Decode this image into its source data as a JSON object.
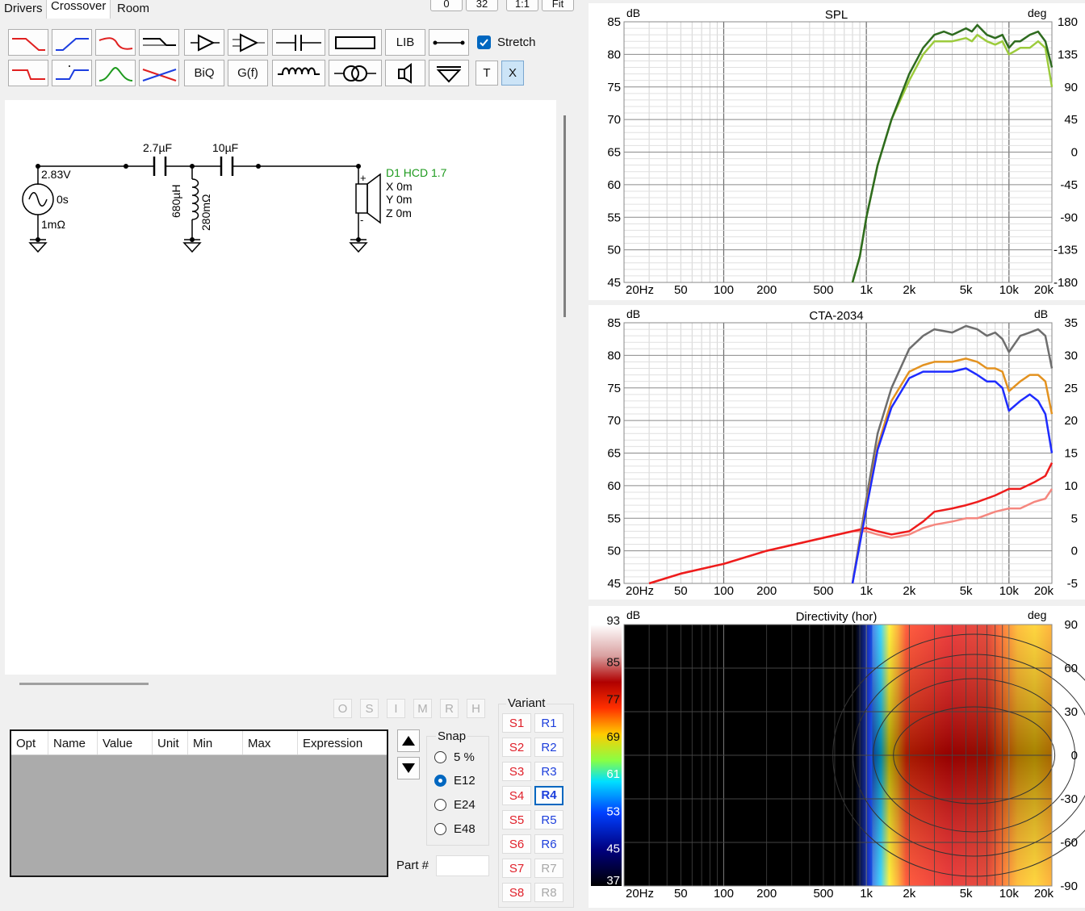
{
  "tabs": [
    {
      "label": "Drivers",
      "active": false
    },
    {
      "label": "Crossover",
      "active": true
    },
    {
      "label": "Room",
      "active": false
    }
  ],
  "top_buttons": [
    "0",
    "32",
    "1:1",
    "Fit"
  ],
  "toolbar": {
    "lib_label": "LIB",
    "biq_label": "BiQ",
    "gf_label": "G(f)",
    "t_label": "T",
    "x_label": "X",
    "stretch_label": "Stretch",
    "stretch_checked": true
  },
  "schematic": {
    "source_voltage": "2.83V",
    "source_delay": "0s",
    "source_resistance": "1mΩ",
    "cap1": "2.7µF",
    "cap2": "10µF",
    "inductor_value": "680µH",
    "inductor_resistance": "280mΩ",
    "driver_name": "D1 HCD 1.7",
    "driver_x": "X 0m",
    "driver_y": "Y 0m",
    "driver_z": "Z 0m",
    "plus": "+",
    "minus": "-"
  },
  "opt_buttons": [
    "O",
    "S",
    "I",
    "M",
    "R",
    "H"
  ],
  "param_table": {
    "columns": [
      "Opt",
      "Name",
      "Value",
      "Unit",
      "Min",
      "Max",
      "Expression"
    ]
  },
  "snap": {
    "title": "Snap",
    "options": [
      {
        "label": "5 %",
        "selected": false
      },
      {
        "label": "E12",
        "selected": true
      },
      {
        "label": "E24",
        "selected": false
      },
      {
        "label": "E48",
        "selected": false
      }
    ]
  },
  "part_label": "Part #",
  "variant": {
    "title": "Variant",
    "s_buttons": [
      "S1",
      "S2",
      "S3",
      "S4",
      "S5",
      "S6",
      "S7",
      "S8"
    ],
    "r_buttons": [
      "R1",
      "R2",
      "R3",
      "R4",
      "R5",
      "R6",
      "R7",
      "R8"
    ],
    "current_r": "R4",
    "disabled_r": [
      "R7",
      "R8"
    ]
  },
  "charts": {
    "colors": {
      "spl_dark": "#2e6b1f",
      "spl_light": "#9ccb3c",
      "cta_on_axis": "#6e6e6e",
      "cta_listening": "#e39220",
      "cta_early": "#1e2cff",
      "cta_power": "#ee1c1c",
      "cta_power_light": "#f5877f"
    },
    "x_ticks": [
      "20Hz",
      "50",
      "100",
      "200",
      "500",
      "1k",
      "2k",
      "5k",
      "10k",
      "20k"
    ],
    "spl": {
      "title": "SPL",
      "left_unit": "dB",
      "right_unit": "deg",
      "y_ticks": [
        "85",
        "80",
        "75",
        "70",
        "65",
        "60",
        "55",
        "50",
        "45"
      ],
      "right_ticks": [
        "180",
        "135",
        "90",
        "45",
        "0",
        "-45",
        "-90",
        "-135",
        "-180"
      ]
    },
    "cta": {
      "title": "CTA-2034",
      "left_unit": "dB",
      "right_unit": "dB",
      "y_ticks": [
        "85",
        "80",
        "75",
        "70",
        "65",
        "60",
        "55",
        "50",
        "45"
      ],
      "right_ticks": [
        "35",
        "30",
        "25",
        "20",
        "15",
        "10",
        "5",
        "0",
        "-5"
      ]
    },
    "directivity": {
      "title": "Directivity (hor)",
      "left_unit": "dB",
      "right_unit": "deg",
      "scale_ticks": [
        "93",
        "85",
        "77",
        "69",
        "61",
        "53",
        "45",
        "37"
      ],
      "right_ticks": [
        "90",
        "60",
        "30",
        "0",
        "-30",
        "-60",
        "-90"
      ]
    }
  },
  "chart_data": [
    {
      "type": "line",
      "title": "SPL",
      "xscale": "log",
      "xlim": [
        20,
        20000
      ],
      "ylim": [
        45,
        85
      ],
      "series": [
        {
          "x": [
            800,
            900,
            1000,
            1200,
            1500,
            2000,
            2500,
            3000,
            3500,
            4000,
            5000,
            5500,
            6000,
            7000,
            8000,
            9000,
            10000,
            11000,
            12000,
            14000,
            16000,
            18000,
            20000
          ],
          "values": [
            45,
            49,
            55,
            63,
            70,
            77,
            81,
            83,
            83.5,
            83,
            84,
            83.5,
            84.5,
            83,
            82.5,
            83,
            81,
            82,
            82,
            83,
            83.5,
            82,
            78
          ]
        },
        {
          "x": [
            800,
            900,
            1000,
            1200,
            1500,
            2000,
            2500,
            3000,
            3500,
            4000,
            5000,
            5500,
            6000,
            7000,
            8000,
            9000,
            10000,
            11000,
            12000,
            14000,
            16000,
            18000,
            20000
          ],
          "values": [
            45,
            49,
            55,
            63,
            70,
            76,
            80,
            82,
            82,
            82,
            82.5,
            82,
            83,
            82,
            81.5,
            82,
            80,
            80.5,
            81,
            81,
            82,
            81,
            75
          ]
        }
      ]
    },
    {
      "type": "line",
      "title": "CTA-2034",
      "xscale": "log",
      "xlim": [
        20,
        20000
      ],
      "ylim": [
        45,
        85
      ],
      "series": [
        {
          "x": [
            800,
            1000,
            1200,
            1500,
            2000,
            2500,
            3000,
            4000,
            5000,
            6000,
            7000,
            8000,
            9000,
            10000,
            12000,
            14000,
            16000,
            18000,
            20000
          ],
          "values": [
            45,
            58,
            68,
            75,
            81,
            83,
            84,
            83.5,
            84.5,
            84,
            83,
            83.5,
            82.5,
            80.5,
            83,
            83.5,
            84,
            83,
            78
          ]
        },
        {
          "x": [
            800,
            1000,
            1200,
            1500,
            2000,
            2500,
            3000,
            4000,
            5000,
            6000,
            7000,
            8000,
            9000,
            10000,
            12000,
            14000,
            16000,
            18000,
            20000
          ],
          "values": [
            45,
            57,
            66,
            73,
            77.5,
            78.5,
            79,
            79,
            79.5,
            79,
            78,
            78,
            77.5,
            74.5,
            76,
            77,
            77,
            76,
            71
          ]
        },
        {
          "x": [
            800,
            1000,
            1200,
            1500,
            2000,
            2500,
            3000,
            4000,
            5000,
            6000,
            7000,
            8000,
            9000,
            10000,
            12000,
            14000,
            16000,
            18000,
            20000
          ],
          "values": [
            45,
            56.5,
            65.5,
            72,
            76.5,
            77.5,
            77.5,
            77.5,
            78,
            77,
            76,
            76,
            75,
            71.5,
            73,
            74,
            73,
            71,
            65
          ]
        },
        {
          "x": [
            30,
            50,
            100,
            200,
            500,
            800,
            1000,
            1200,
            1500,
            2000,
            2500,
            3000,
            4000,
            5000,
            6000,
            8000,
            10000,
            12000,
            15000,
            18000,
            20000
          ],
          "values": [
            45,
            46.5,
            48,
            50,
            52,
            53,
            53.5,
            53,
            52.5,
            53,
            54.5,
            56,
            56.5,
            57,
            57.5,
            58.5,
            59.5,
            59.5,
            60.5,
            61.5,
            63.5
          ]
        },
        {
          "x": [
            30,
            50,
            100,
            200,
            500,
            800,
            1000,
            1200,
            1500,
            2000,
            2500,
            3000,
            4000,
            5000,
            6000,
            8000,
            10000,
            12000,
            15000,
            18000,
            20000
          ],
          "values": [
            45,
            46.5,
            48,
            50,
            52,
            53,
            53,
            52.5,
            52,
            52.5,
            53.5,
            54,
            54.5,
            55,
            55,
            56,
            56.5,
            56.5,
            57.5,
            58,
            59.5
          ]
        }
      ]
    }
  ]
}
